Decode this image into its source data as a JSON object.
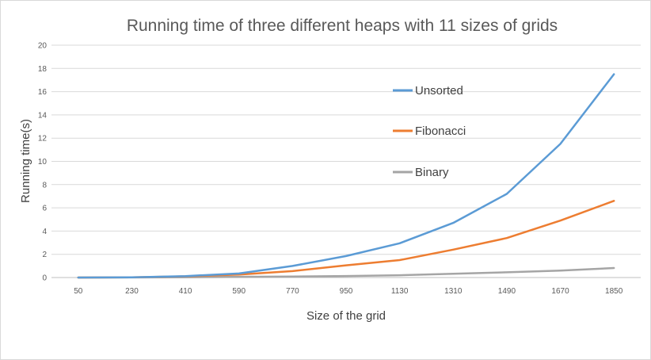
{
  "chart_data": {
    "type": "line",
    "title": "Running time of three different heaps with 11 sizes of grids",
    "xlabel": "Size of the grid",
    "ylabel": "Running time(s)",
    "categories": [
      "50",
      "230",
      "410",
      "590",
      "770",
      "950",
      "1130",
      "1310",
      "1490",
      "1670",
      "1850"
    ],
    "ylim": [
      0,
      20
    ],
    "yticks": [
      "0",
      "2",
      "4",
      "6",
      "8",
      "10",
      "12",
      "14",
      "16",
      "18",
      "20"
    ],
    "grid": true,
    "legend_position": "right",
    "series": [
      {
        "name": "Unsorted",
        "color": "#5b9bd5",
        "values": [
          0,
          0.02,
          0.12,
          0.35,
          1.0,
          1.85,
          2.95,
          4.7,
          7.2,
          11.5,
          17.5
        ]
      },
      {
        "name": "Fibonacci",
        "color": "#ed7d31",
        "values": [
          0,
          0.02,
          0.1,
          0.25,
          0.55,
          1.05,
          1.5,
          2.4,
          3.4,
          4.9,
          6.6
        ]
      },
      {
        "name": "Binary",
        "color": "#a5a5a5",
        "values": [
          0,
          0.01,
          0.03,
          0.06,
          0.09,
          0.13,
          0.2,
          0.32,
          0.45,
          0.6,
          0.82
        ]
      }
    ]
  }
}
